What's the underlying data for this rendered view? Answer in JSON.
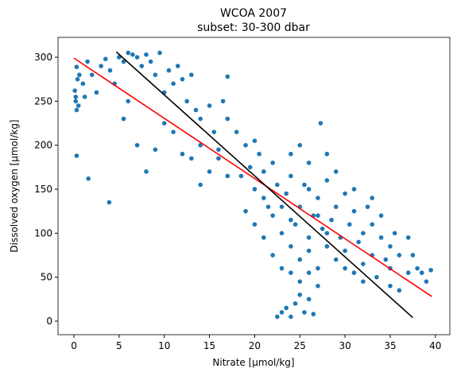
{
  "chart_data": {
    "type": "scatter",
    "title": "WCOA 2007",
    "subtitle": "subset: 30-300 dbar",
    "xlabel": "Nitrate [μmol/kg]",
    "ylabel": "Dissolved oxygen [μmol/kg]",
    "xlim": [
      -1.76,
      41.6
    ],
    "ylim": [
      -15.4,
      322.6
    ],
    "xticks": [
      0,
      5,
      10,
      15,
      20,
      25,
      30,
      35,
      40
    ],
    "yticks": [
      0,
      50,
      100,
      150,
      200,
      250,
      300
    ],
    "scatter": {
      "color": "#1f77b4",
      "x": [
        0.2,
        0.3,
        0.1,
        0.4,
        0.5,
        0.2,
        0.6,
        0.3,
        1.0,
        1.2,
        0.3,
        1.6,
        3.9,
        1.5,
        2.0,
        2.5,
        3,
        3.5,
        4,
        4.5,
        5,
        5.5,
        6,
        6.5,
        7,
        7.5,
        8,
        8.5,
        9,
        9.5,
        10,
        10.5,
        11,
        11.5,
        12,
        12.5,
        13,
        13.5,
        14,
        5.5,
        6,
        7,
        8,
        9,
        10,
        11,
        12,
        13,
        14,
        15,
        15.5,
        16,
        16.5,
        17,
        17,
        18,
        18.5,
        19,
        19.5,
        20,
        20,
        20.5,
        21,
        21.5,
        21,
        22,
        22,
        22.5,
        23,
        23,
        23.5,
        24,
        24,
        24.5,
        25,
        25,
        25.5,
        26,
        26,
        26.5,
        27,
        27,
        27.3,
        27.5,
        28,
        28,
        28.5,
        29,
        29,
        29.5,
        30,
        30,
        30.5,
        31,
        31,
        31.5,
        32,
        32,
        32.5,
        33,
        33,
        33.5,
        34,
        34,
        34.5,
        35,
        35,
        35.5,
        36,
        37,
        37.5,
        38,
        38.5,
        39,
        39.5,
        22.5,
        23,
        23.5,
        24,
        24.5,
        25,
        25.5,
        26,
        26.5,
        27,
        25,
        24,
        26,
        22,
        21,
        20,
        19,
        17,
        16,
        15,
        14,
        25,
        24,
        28,
        29,
        31,
        33,
        26,
        27,
        28,
        30,
        32,
        35,
        36,
        37,
        23,
        24,
        26
      ],
      "y": [
        250,
        240,
        262,
        275,
        245,
        255,
        280,
        289,
        270,
        255,
        188,
        162,
        135,
        295,
        280,
        260,
        290,
        298,
        285,
        270,
        300,
        295,
        305,
        303,
        300,
        290,
        303,
        295,
        280,
        305,
        260,
        285,
        270,
        290,
        275,
        250,
        280,
        240,
        230,
        230,
        250,
        200,
        170,
        195,
        225,
        215,
        190,
        185,
        200,
        245,
        215,
        185,
        250,
        278,
        230,
        215,
        165,
        200,
        175,
        205,
        150,
        190,
        140,
        130,
        170,
        120,
        180,
        155,
        130,
        100,
        145,
        85,
        165,
        110,
        130,
        70,
        155,
        95,
        180,
        120,
        140,
        60,
        225,
        105,
        85,
        160,
        115,
        70,
        130,
        95,
        145,
        80,
        110,
        55,
        125,
        90,
        100,
        65,
        130,
        75,
        110,
        50,
        95,
        120,
        70,
        85,
        60,
        100,
        75,
        55,
        75,
        60,
        55,
        45,
        58,
        5,
        10,
        15,
        5,
        20,
        30,
        10,
        25,
        8,
        40,
        45,
        55,
        55,
        75,
        95,
        110,
        125,
        165,
        195,
        170,
        155,
        200,
        190,
        190,
        170,
        150,
        140,
        150,
        120,
        100,
        60,
        45,
        40,
        35,
        95,
        60,
        115,
        80
      ]
    },
    "lines": [
      {
        "color": "#ff0000",
        "x": [
          0,
          39.6
        ],
        "y": [
          299,
          28
        ]
      },
      {
        "color": "#000000",
        "x": [
          4.7,
          37.5
        ],
        "y": [
          306,
          4
        ]
      }
    ]
  }
}
